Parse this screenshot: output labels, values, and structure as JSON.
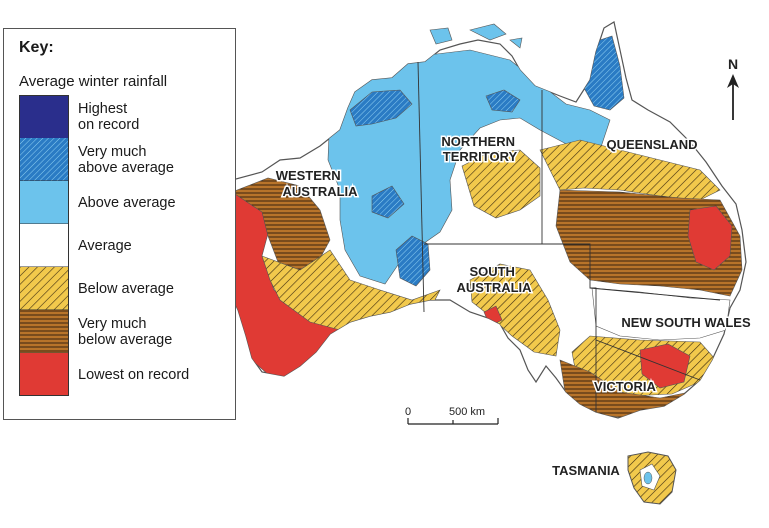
{
  "key": {
    "title": "Key:",
    "subtitle": "Average winter rainfall",
    "items": [
      {
        "label": "Highest\non record",
        "category": "highest-on-record",
        "color": "#2a2e8c"
      },
      {
        "label": "Very much\nabove average",
        "category": "very-much-above-average",
        "color": "#2a7bc4"
      },
      {
        "label": "Above average",
        "category": "above-average",
        "color": "#6cc3ec"
      },
      {
        "label": "Average",
        "category": "average",
        "color": "#ffffff"
      },
      {
        "label": "Below average",
        "category": "below-average",
        "color": "#f2c94c"
      },
      {
        "label": "Very much\nbelow average",
        "category": "very-much-below-average",
        "color": "#b8742a"
      },
      {
        "label": "Lowest on record",
        "category": "lowest-on-record",
        "color": "#e03a34"
      }
    ]
  },
  "map": {
    "regions": {
      "western_australia": [
        "WESTERN",
        "AUSTRALIA"
      ],
      "northern_territory": [
        "NORTHERN",
        "TERRITORY"
      ],
      "queensland": "QUEENSLAND",
      "south_australia": [
        "SOUTH",
        "AUSTRALIA"
      ],
      "new_south_wales": "NEW SOUTH WALES",
      "victoria": "VICTORIA",
      "tasmania": "TASMANIA"
    },
    "north_arrow": "N",
    "scale_bar": {
      "start": "0",
      "end": "500",
      "unit": "km"
    }
  }
}
